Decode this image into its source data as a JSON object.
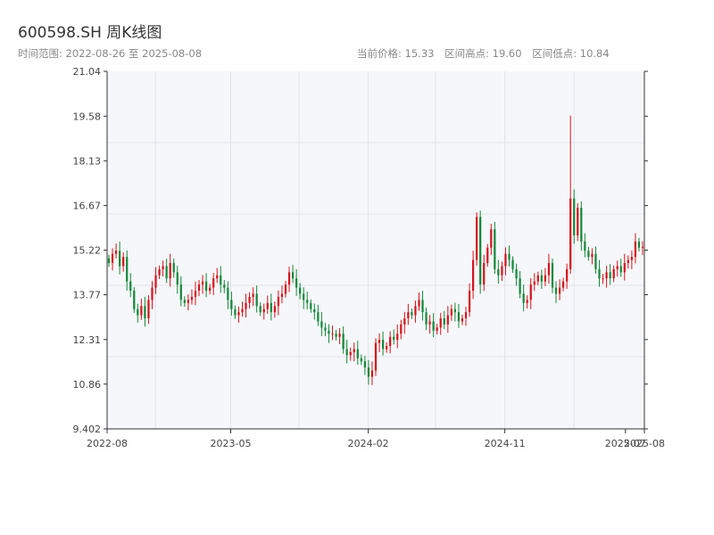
{
  "header": {
    "title": "600598.SH 周K线图",
    "range_text": "时间范围: 2022-08-26 至 2025-08-08",
    "current_price_text": "当前价格: 15.33",
    "high_text": "区间高点: 19.60",
    "low_text": "区间低点: 10.84"
  },
  "colors": {
    "up": "#d4141d",
    "down": "#14883a",
    "plot_bg": "#f6f7fa",
    "grid": "#e1e4ea",
    "axis": "#333333"
  },
  "chart_data": {
    "type": "candlestick",
    "title": "600598.SH 周K线图",
    "y_ticks": [
      "9.402",
      "10.86",
      "12.31",
      "13.77",
      "15.22",
      "16.67",
      "18.13",
      "19.58",
      "21.04"
    ],
    "y_tick_values": [
      9.402,
      10.86,
      12.31,
      13.77,
      15.22,
      16.67,
      18.13,
      19.58,
      21.04
    ],
    "ylim": [
      9.402,
      21.04
    ],
    "x_range": [
      "2022-08-26",
      "2025-08-08"
    ],
    "x_ticks": [
      {
        "label": "2022-08",
        "date": "2022-08-26"
      },
      {
        "label": "2023-05",
        "date": "2023-05-01"
      },
      {
        "label": "2024-02",
        "date": "2024-02-01"
      },
      {
        "label": "2024-11",
        "date": "2024-11-01"
      },
      {
        "label": "2025-07",
        "date": "2025-07-01"
      },
      {
        "label": "2025-08",
        "date": "2025-08-08"
      }
    ],
    "grid": true,
    "current_price": 15.33,
    "range_high": 19.6,
    "range_low": 10.84,
    "series_close": [
      14.8,
      15.1,
      15.2,
      14.7,
      15.0,
      14.2,
      13.9,
      13.3,
      13.1,
      13.4,
      13.0,
      13.6,
      14.0,
      14.4,
      14.6,
      14.7,
      14.3,
      14.8,
      14.5,
      14.1,
      13.6,
      13.5,
      13.6,
      13.7,
      13.9,
      14.1,
      14.2,
      13.9,
      14.0,
      14.3,
      14.4,
      14.1,
      14.0,
      13.6,
      13.3,
      13.1,
      13.2,
      13.3,
      13.5,
      13.7,
      13.8,
      13.4,
      13.2,
      13.3,
      13.5,
      13.2,
      13.4,
      13.7,
      13.8,
      14.1,
      14.5,
      14.3,
      14.0,
      13.8,
      13.6,
      13.5,
      13.3,
      13.2,
      12.9,
      12.7,
      12.6,
      12.5,
      12.5,
      12.4,
      12.5,
      12.0,
      11.8,
      11.9,
      12.0,
      11.7,
      11.6,
      11.4,
      11.1,
      11.3,
      12.2,
      12.3,
      12.0,
      12.1,
      12.4,
      12.3,
      12.5,
      12.8,
      13.0,
      13.2,
      13.1,
      13.4,
      13.6,
      13.2,
      12.8,
      12.9,
      12.6,
      12.7,
      13.0,
      12.8,
      13.1,
      13.3,
      13.2,
      12.9,
      13.0,
      13.2,
      13.9,
      14.9,
      16.3,
      14.1,
      14.8,
      15.3,
      15.9,
      14.6,
      14.4,
      14.7,
      15.1,
      14.9,
      14.6,
      14.3,
      13.8,
      13.5,
      13.6,
      14.1,
      14.2,
      14.4,
      14.2,
      14.4,
      14.8,
      14.0,
      13.8,
      14.0,
      14.2,
      14.6,
      16.9,
      15.7,
      16.6,
      15.5,
      15.2,
      15.0,
      15.1,
      14.6,
      14.3,
      14.3,
      14.5,
      14.3,
      14.6,
      14.7,
      14.5,
      14.8,
      14.9,
      15.0,
      15.5,
      15.3,
      15.33
    ]
  }
}
